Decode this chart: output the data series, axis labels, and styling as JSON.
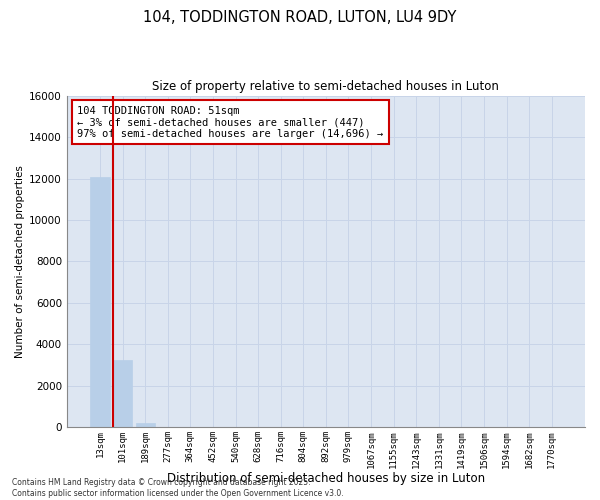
{
  "title_line1": "104, TODDINGTON ROAD, LUTON, LU4 9DY",
  "title_line2": "Size of property relative to semi-detached houses in Luton",
  "xlabel": "Distribution of semi-detached houses by size in Luton",
  "ylabel": "Number of semi-detached properties",
  "categories": [
    "13sqm",
    "101sqm",
    "189sqm",
    "277sqm",
    "364sqm",
    "452sqm",
    "540sqm",
    "628sqm",
    "716sqm",
    "804sqm",
    "892sqm",
    "979sqm",
    "1067sqm",
    "1155sqm",
    "1243sqm",
    "1331sqm",
    "1419sqm",
    "1506sqm",
    "1594sqm",
    "1682sqm",
    "1770sqm"
  ],
  "values": [
    12050,
    3250,
    200,
    0,
    0,
    0,
    0,
    0,
    0,
    0,
    0,
    0,
    0,
    0,
    0,
    0,
    0,
    0,
    0,
    0,
    0
  ],
  "bar_color": "#b8cfe8",
  "bar_edge_color": "#b8cfe8",
  "highlight_color": "#cc0000",
  "grid_color": "#c8d4e8",
  "background_color": "#dde6f2",
  "ylim": [
    0,
    16000
  ],
  "yticks": [
    0,
    2000,
    4000,
    6000,
    8000,
    10000,
    12000,
    14000,
    16000
  ],
  "annotation_title": "104 TODDINGTON ROAD: 51sqm",
  "annotation_line2": "← 3% of semi-detached houses are smaller (447)",
  "annotation_line3": "97% of semi-detached houses are larger (14,696) →",
  "footnote_line1": "Contains HM Land Registry data © Crown copyright and database right 2025.",
  "footnote_line2": "Contains public sector information licensed under the Open Government Licence v3.0.",
  "red_line_x": 0.58
}
